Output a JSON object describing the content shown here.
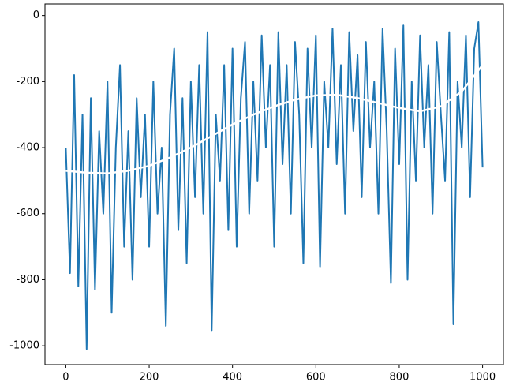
{
  "chart_data": {
    "type": "line",
    "xlim": [
      -50,
      1050
    ],
    "ylim": [
      -1057,
      35
    ],
    "xticks": [
      0,
      200,
      400,
      600,
      800,
      1000
    ],
    "yticks": [
      0,
      -200,
      -400,
      -600,
      -800,
      -1000
    ],
    "grid": false,
    "series": [
      {
        "color": "#1f77b4",
        "width": 2,
        "x": [
          0,
          10,
          20,
          30,
          40,
          50,
          60,
          70,
          80,
          90,
          100,
          110,
          120,
          130,
          140,
          150,
          160,
          170,
          180,
          190,
          200,
          210,
          220,
          230,
          240,
          250,
          260,
          270,
          280,
          290,
          300,
          310,
          320,
          330,
          340,
          350,
          360,
          370,
          380,
          390,
          400,
          410,
          420,
          430,
          440,
          450,
          460,
          470,
          480,
          490,
          500,
          510,
          520,
          530,
          540,
          550,
          560,
          570,
          580,
          590,
          600,
          610,
          620,
          630,
          640,
          650,
          660,
          670,
          680,
          690,
          700,
          710,
          720,
          730,
          740,
          750,
          760,
          770,
          780,
          790,
          800,
          810,
          820,
          830,
          840,
          850,
          860,
          870,
          880,
          890,
          900,
          910,
          920,
          930,
          940,
          950,
          960,
          970,
          980,
          990,
          1000
        ],
        "values": [
          -400,
          -780,
          -180,
          -820,
          -300,
          -1010,
          -250,
          -830,
          -350,
          -600,
          -200,
          -900,
          -400,
          -150,
          -700,
          -350,
          -800,
          -250,
          -550,
          -300,
          -700,
          -200,
          -600,
          -400,
          -940,
          -300,
          -100,
          -650,
          -250,
          -750,
          -200,
          -550,
          -150,
          -600,
          -50,
          -955,
          -300,
          -500,
          -150,
          -650,
          -100,
          -700,
          -250,
          -80,
          -600,
          -200,
          -500,
          -60,
          -400,
          -150,
          -700,
          -50,
          -450,
          -150,
          -600,
          -80,
          -300,
          -750,
          -100,
          -400,
          -60,
          -760,
          -200,
          -400,
          -40,
          -450,
          -150,
          -600,
          -50,
          -350,
          -120,
          -550,
          -80,
          -400,
          -200,
          -600,
          -40,
          -350,
          -810,
          -100,
          -450,
          -30,
          -800,
          -200,
          -500,
          -60,
          -400,
          -150,
          -600,
          -80,
          -300,
          -500,
          -50,
          -935,
          -200,
          -400,
          -60,
          -550,
          -100,
          -20,
          -460
        ]
      },
      {
        "color": "#ffffff",
        "width": 2.5,
        "x": [
          0,
          50,
          100,
          150,
          200,
          250,
          300,
          350,
          400,
          450,
          500,
          550,
          600,
          650,
          700,
          750,
          800,
          850,
          900,
          950,
          1000
        ],
        "values": [
          -470,
          -476,
          -478,
          -470,
          -455,
          -430,
          -400,
          -365,
          -330,
          -300,
          -275,
          -255,
          -242,
          -240,
          -250,
          -265,
          -280,
          -290,
          -275,
          -230,
          -150
        ]
      }
    ]
  }
}
